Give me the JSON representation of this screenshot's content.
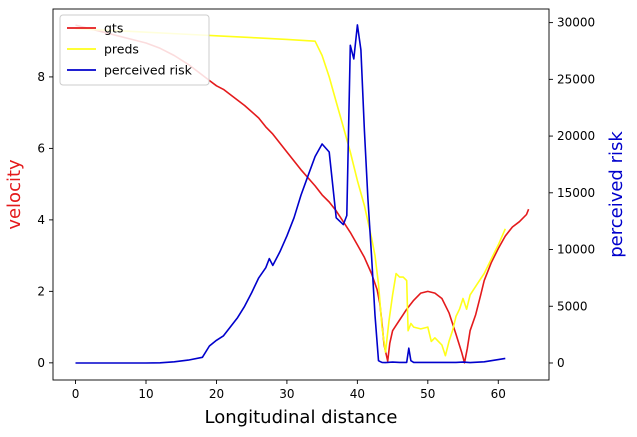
{
  "chart_data": {
    "type": "line",
    "xlabel": "Longitudinal distance",
    "ylabel_left": "velocity",
    "ylabel_right": "perceived risk",
    "xlim": [
      -3.2,
      67.2
    ],
    "ylim_left": [
      -0.48,
      9.9
    ],
    "ylim_right": [
      -1500,
      31200
    ],
    "x_ticks": [
      0,
      10,
      20,
      30,
      40,
      50,
      60
    ],
    "y_left_ticks": [
      0,
      2,
      4,
      6,
      8
    ],
    "y_right_ticks": [
      0,
      5000,
      10000,
      15000,
      20000,
      25000,
      30000
    ],
    "grid": false,
    "legend_position": "top-left",
    "colors": {
      "gts": "#e41a1c",
      "preds": "#ffff1a",
      "risk": "#0000cc",
      "left_label": "#e41a1c",
      "right_label": "#0000cc"
    },
    "series": [
      {
        "name": "gts",
        "axis": "left",
        "x": [
          0,
          2,
          4,
          6,
          8,
          10,
          12,
          14,
          16,
          18,
          19,
          20,
          21,
          22,
          24,
          26,
          27,
          28,
          30,
          32,
          34,
          35,
          36,
          37,
          38,
          39,
          40,
          41,
          42,
          42.8,
          43.2,
          43.5,
          43.8,
          44.3,
          44.6,
          45,
          45.5,
          46,
          46.5,
          47,
          48,
          49,
          50,
          51,
          52,
          53,
          54,
          54.8,
          55.2,
          55.6,
          56,
          56.8,
          57.5,
          58,
          59,
          60,
          61,
          62,
          63,
          64,
          64.3
        ],
        "y": [
          9.45,
          9.35,
          9.25,
          9.15,
          9.05,
          8.95,
          8.8,
          8.6,
          8.35,
          8.05,
          7.9,
          7.75,
          7.65,
          7.5,
          7.2,
          6.85,
          6.6,
          6.4,
          5.9,
          5.4,
          4.95,
          4.7,
          4.5,
          4.25,
          3.95,
          3.65,
          3.3,
          2.95,
          2.5,
          2.05,
          1.65,
          1.1,
          0.5,
          0.05,
          0.55,
          0.9,
          1.05,
          1.2,
          1.35,
          1.5,
          1.75,
          1.95,
          2.0,
          1.95,
          1.8,
          1.4,
          0.8,
          0.3,
          0.0,
          0.4,
          0.9,
          1.35,
          1.9,
          2.3,
          2.8,
          3.2,
          3.55,
          3.8,
          3.95,
          4.15,
          4.3
        ]
      },
      {
        "name": "preds",
        "axis": "left",
        "x": [
          0,
          5,
          10,
          15,
          20,
          25,
          30,
          34,
          35,
          36,
          37,
          38,
          39,
          40,
          41,
          42,
          42.5,
          43,
          43.5,
          44,
          44.5,
          45,
          45.5,
          46,
          46.5,
          47,
          47.2,
          47.6,
          48,
          49,
          50,
          50.5,
          51,
          51.5,
          52,
          52.5,
          53,
          53.5,
          54,
          54.5,
          55,
          55.5,
          56,
          57,
          58,
          59,
          60,
          61
        ],
        "y": [
          9.35,
          9.3,
          9.25,
          9.2,
          9.15,
          9.1,
          9.05,
          9.0,
          8.6,
          8.0,
          7.3,
          6.6,
          5.9,
          5.1,
          4.4,
          3.5,
          3.0,
          2.2,
          1.0,
          0.3,
          1.2,
          1.9,
          2.5,
          2.4,
          2.4,
          2.3,
          0.9,
          1.1,
          1.0,
          0.95,
          1.0,
          0.6,
          0.7,
          0.6,
          0.5,
          0.2,
          0.6,
          0.9,
          1.3,
          1.5,
          1.8,
          1.5,
          1.9,
          2.2,
          2.5,
          2.9,
          3.3,
          3.75
        ]
      },
      {
        "name": "perceived risk",
        "axis": "right",
        "x": [
          0,
          5,
          10,
          12,
          14,
          16,
          18,
          19,
          20,
          21,
          22,
          23,
          24,
          25,
          26,
          27,
          27.5,
          28,
          29,
          30,
          31,
          32,
          33,
          34,
          35,
          36,
          37,
          38,
          38.5,
          39,
          39.5,
          40,
          40.5,
          41,
          41.5,
          42,
          42.5,
          43,
          43.3,
          43.5,
          44,
          45,
          46,
          47,
          47.3,
          47.6,
          48,
          50,
          52,
          54,
          55,
          56,
          58,
          60,
          61
        ],
        "y": [
          0,
          0,
          0,
          20,
          100,
          250,
          500,
          1500,
          2000,
          2400,
          3200,
          4000,
          5000,
          6200,
          7500,
          8400,
          9200,
          8600,
          9800,
          11200,
          12800,
          14800,
          16500,
          18200,
          19300,
          18600,
          12800,
          12200,
          13000,
          28000,
          26800,
          29800,
          27600,
          20500,
          14500,
          9500,
          4200,
          200,
          100,
          50,
          30,
          80,
          50,
          50,
          1300,
          200,
          50,
          50,
          50,
          50,
          80,
          30,
          100,
          300,
          400
        ]
      }
    ]
  }
}
